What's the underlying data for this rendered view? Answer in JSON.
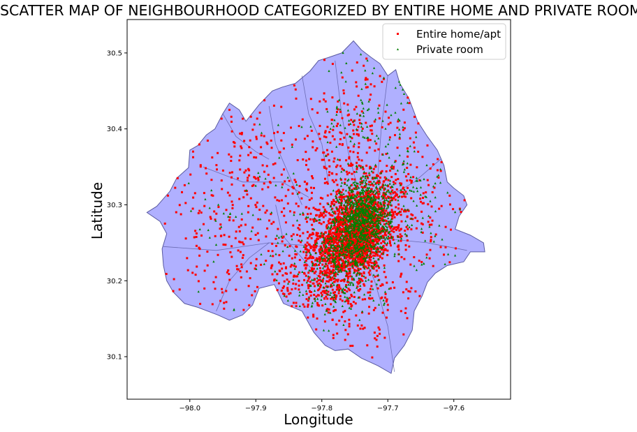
{
  "chart_data": {
    "type": "scatter",
    "title": "SCATTER MAP OF NEIGHBOURHOOD CATEGORIZED BY ENTIRE HOME AND PRIVATE ROOM",
    "xlabel": "Longitude",
    "ylabel": "Latitude",
    "xlim": [
      -98.095,
      -97.514
    ],
    "ylim": [
      30.044,
      30.544
    ],
    "xticks": [
      -98.0,
      -97.9,
      -97.8,
      -97.7,
      -97.6
    ],
    "xtick_labels": [
      "−98.0",
      "−97.9",
      "−97.8",
      "−97.7",
      "−97.6"
    ],
    "yticks": [
      30.1,
      30.2,
      30.3,
      30.4,
      30.5
    ],
    "ytick_labels": [
      "30.1",
      "30.2",
      "30.3",
      "30.4",
      "30.5"
    ],
    "grid": false,
    "legend_position": "top-right",
    "basemap": {
      "fill": "#b0b0ff",
      "edge": "#5a5aa0",
      "outline": [
        [
          -98.065,
          30.29
        ],
        [
          -98.05,
          30.298
        ],
        [
          -98.03,
          30.318
        ],
        [
          -98.02,
          30.335
        ],
        [
          -98.002,
          30.349
        ],
        [
          -98.0,
          30.372
        ],
        [
          -97.988,
          30.378
        ],
        [
          -97.975,
          30.392
        ],
        [
          -97.962,
          30.4
        ],
        [
          -97.95,
          30.42
        ],
        [
          -97.94,
          30.434
        ],
        [
          -97.925,
          30.425
        ],
        [
          -97.915,
          30.41
        ],
        [
          -97.895,
          30.432
        ],
        [
          -97.875,
          30.45
        ],
        [
          -97.86,
          30.455
        ],
        [
          -97.84,
          30.46
        ],
        [
          -97.818,
          30.476
        ],
        [
          -97.805,
          30.49
        ],
        [
          -97.79,
          30.494
        ],
        [
          -97.77,
          30.5
        ],
        [
          -97.752,
          30.516
        ],
        [
          -97.74,
          30.504
        ],
        [
          -97.725,
          30.494
        ],
        [
          -97.712,
          30.486
        ],
        [
          -97.7,
          30.47
        ],
        [
          -97.688,
          30.478
        ],
        [
          -97.682,
          30.46
        ],
        [
          -97.668,
          30.44
        ],
        [
          -97.655,
          30.41
        ],
        [
          -97.64,
          30.39
        ],
        [
          -97.625,
          30.372
        ],
        [
          -97.615,
          30.352
        ],
        [
          -97.61,
          30.33
        ],
        [
          -97.6,
          30.322
        ],
        [
          -97.585,
          30.312
        ],
        [
          -97.58,
          30.3
        ],
        [
          -97.592,
          30.285
        ],
        [
          -97.598,
          30.268
        ],
        [
          -97.575,
          30.26
        ],
        [
          -97.555,
          30.25
        ],
        [
          -97.553,
          30.238
        ],
        [
          -97.575,
          30.238
        ],
        [
          -97.585,
          30.225
        ],
        [
          -97.61,
          30.22
        ],
        [
          -97.628,
          30.21
        ],
        [
          -97.64,
          30.198
        ],
        [
          -97.648,
          30.18
        ],
        [
          -97.66,
          30.16
        ],
        [
          -97.663,
          30.135
        ],
        [
          -97.675,
          30.115
        ],
        [
          -97.69,
          30.098
        ],
        [
          -97.695,
          30.078
        ],
        [
          -97.715,
          30.088
        ],
        [
          -97.74,
          30.098
        ],
        [
          -97.76,
          30.11
        ],
        [
          -97.78,
          30.108
        ],
        [
          -97.795,
          30.115
        ],
        [
          -97.812,
          30.132
        ],
        [
          -97.83,
          30.16
        ],
        [
          -97.858,
          30.17
        ],
        [
          -97.872,
          30.195
        ],
        [
          -97.895,
          30.19
        ],
        [
          -97.905,
          30.168
        ],
        [
          -97.92,
          30.155
        ],
        [
          -97.94,
          30.148
        ],
        [
          -97.958,
          30.155
        ],
        [
          -97.988,
          30.165
        ],
        [
          -98.008,
          30.17
        ],
        [
          -98.025,
          30.185
        ],
        [
          -98.035,
          30.2
        ],
        [
          -98.04,
          30.22
        ],
        [
          -98.042,
          30.242
        ],
        [
          -98.035,
          30.262
        ],
        [
          -98.045,
          30.278
        ],
        [
          -98.065,
          30.29
        ]
      ]
    },
    "series": [
      {
        "name": "Entire home/apt",
        "color": "#ff0000",
        "marker": "square",
        "clusters": [
          {
            "lon": -97.745,
            "lat": 30.262,
            "lon_sd": 0.022,
            "lat_sd": 0.024,
            "count": 1200
          },
          {
            "lon": -97.775,
            "lat": 30.242,
            "lon_sd": 0.026,
            "lat_sd": 0.028,
            "count": 500
          },
          {
            "lon": -97.72,
            "lat": 30.3,
            "lon_sd": 0.028,
            "lat_sd": 0.028,
            "count": 400
          },
          {
            "lon": -97.8,
            "lat": 30.205,
            "lon_sd": 0.038,
            "lat_sd": 0.035,
            "count": 280
          },
          {
            "lon": -97.76,
            "lat": 30.375,
            "lon_sd": 0.045,
            "lat_sd": 0.055,
            "count": 220
          },
          {
            "lon": -97.9,
            "lat": 30.33,
            "lon_sd": 0.08,
            "lat_sd": 0.07,
            "count": 260
          },
          {
            "lon": -97.93,
            "lat": 30.22,
            "lon_sd": 0.06,
            "lat_sd": 0.05,
            "count": 110
          },
          {
            "lon": -97.66,
            "lat": 30.29,
            "lon_sd": 0.045,
            "lat_sd": 0.06,
            "count": 130
          },
          {
            "lon": -97.72,
            "lat": 30.16,
            "lon_sd": 0.04,
            "lat_sd": 0.035,
            "count": 80
          }
        ]
      },
      {
        "name": "Private room",
        "color": "#008000",
        "marker": "triangle",
        "clusters": [
          {
            "lon": -97.735,
            "lat": 30.285,
            "lon_sd": 0.02,
            "lat_sd": 0.024,
            "count": 750
          },
          {
            "lon": -97.76,
            "lat": 30.245,
            "lon_sd": 0.024,
            "lat_sd": 0.024,
            "count": 360
          },
          {
            "lon": -97.725,
            "lat": 30.385,
            "lon_sd": 0.04,
            "lat_sd": 0.06,
            "count": 140
          },
          {
            "lon": -97.79,
            "lat": 30.195,
            "lon_sd": 0.04,
            "lat_sd": 0.035,
            "count": 140
          },
          {
            "lon": -97.665,
            "lat": 30.3,
            "lon_sd": 0.04,
            "lat_sd": 0.05,
            "count": 90
          },
          {
            "lon": -97.88,
            "lat": 30.3,
            "lon_sd": 0.07,
            "lat_sd": 0.07,
            "count": 70
          }
        ]
      }
    ]
  }
}
